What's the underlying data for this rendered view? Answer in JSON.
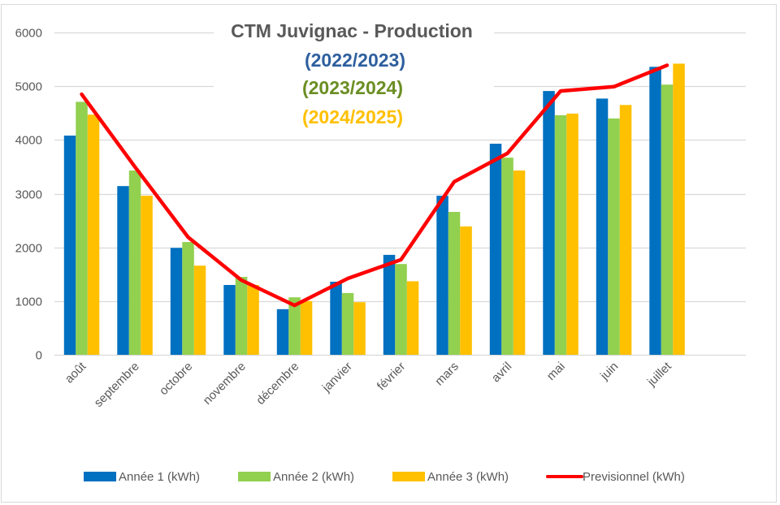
{
  "chart_data": {
    "type": "bar",
    "title": "CTM Juvignac  - Production",
    "subtitles": [
      {
        "text": "(2022/2023)",
        "color": "#2E5F9E"
      },
      {
        "text": "(2023/2024)",
        "color": "#6B8E23"
      },
      {
        "text": "(2024/2025)",
        "color": "#FFC000"
      }
    ],
    "title_color": "#595959",
    "xlabel": "",
    "ylabel": "",
    "ylim": [
      0,
      6000
    ],
    "yticks": [
      0,
      1000,
      2000,
      3000,
      4000,
      5000,
      6000
    ],
    "grid": true,
    "legend_position": "bottom",
    "categories": [
      "août",
      "septembre",
      "octobre",
      "novembre",
      "décembre",
      "janvier",
      "février",
      "mars",
      "avril",
      "mai",
      "juin",
      "juillet"
    ],
    "series": [
      {
        "name": "Année 1 (kWh)",
        "kind": "bar",
        "color": "#0070C0",
        "values": [
          4080,
          3140,
          1990,
          1300,
          850,
          1360,
          1860,
          2960,
          3930,
          4910,
          4770,
          5360
        ]
      },
      {
        "name": "Année 2 (kWh)",
        "kind": "bar",
        "color": "#92D050",
        "values": [
          4710,
          3430,
          2100,
          1450,
          1070,
          1150,
          1690,
          2660,
          3670,
          4460,
          4400,
          5030
        ]
      },
      {
        "name": "Année 3 (kWh)",
        "kind": "bar",
        "color": "#FFC000",
        "values": [
          4470,
          2960,
          1660,
          1300,
          1000,
          980,
          1370,
          2390,
          3430,
          4490,
          4650,
          5420
        ]
      },
      {
        "name": "Previsionnel (kWh)",
        "kind": "line",
        "color": "#FF0000",
        "values": [
          4850,
          3500,
          2190,
          1390,
          920,
          1420,
          1770,
          3220,
          3750,
          4910,
          4990,
          5390
        ]
      }
    ]
  }
}
